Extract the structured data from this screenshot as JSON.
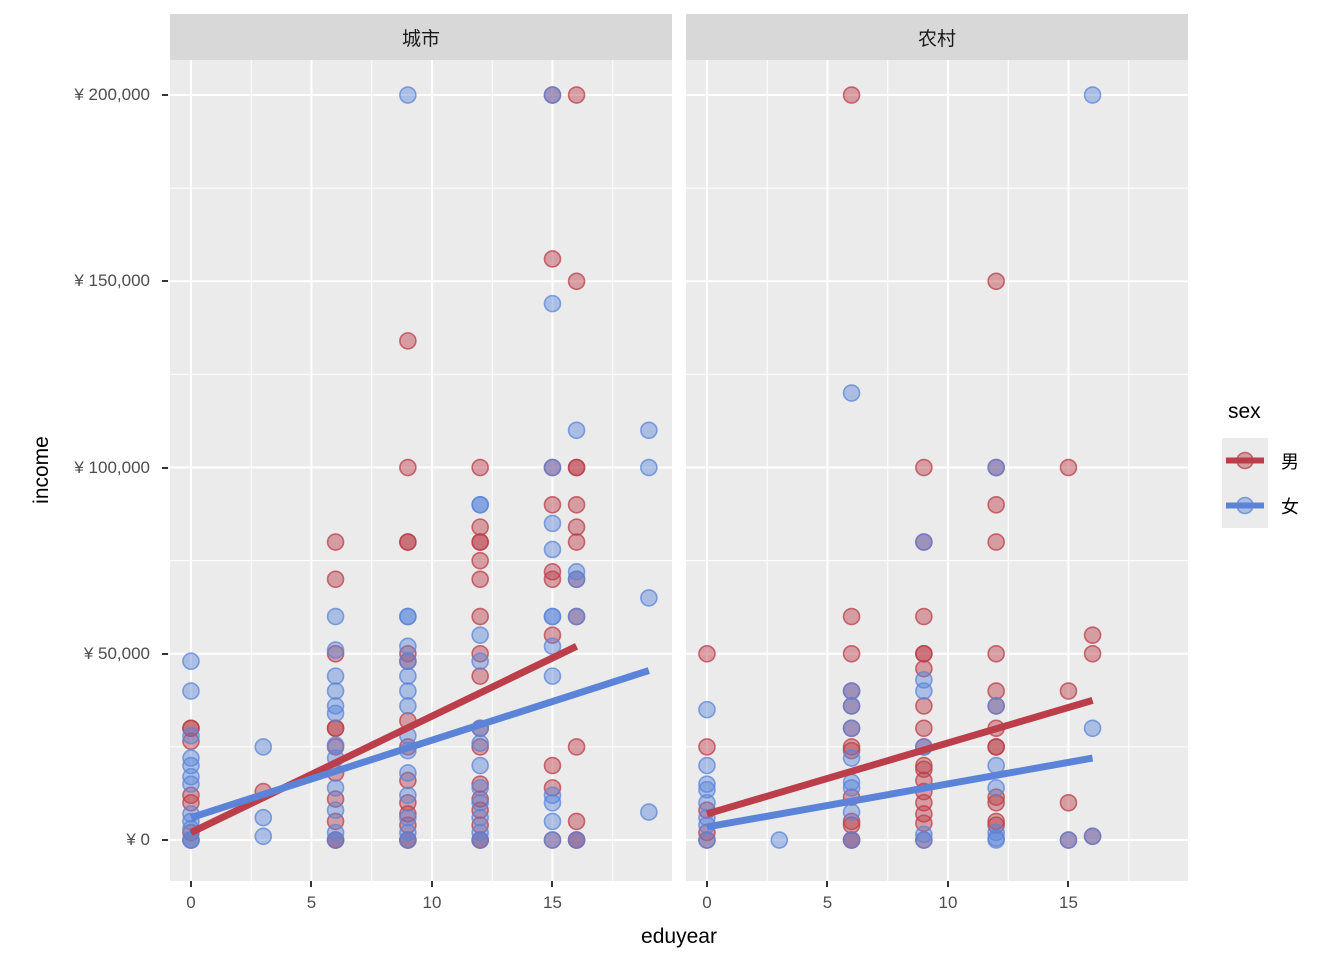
{
  "figure": {
    "xlabel": "eduyear",
    "ylabel": "income"
  },
  "legend": {
    "title": "sex",
    "entries": [
      {
        "label": "男",
        "color": "#bb3e4a"
      },
      {
        "label": "女",
        "color": "#5b84d9"
      }
    ]
  },
  "style": {
    "panel_bg": "#ebebeb",
    "strip_bg": "#d8d8d8",
    "grid_color": "#ffffff",
    "male_color": "#bb3e4a",
    "female_color": "#5b84d9"
  },
  "chart_data": {
    "type": "scatter",
    "xlabel": "eduyear",
    "ylabel": "income",
    "facets": [
      {
        "label": "城市"
      },
      {
        "label": "农村"
      }
    ],
    "x_ticks": [
      0,
      5,
      10,
      15
    ],
    "x_tick_labels": [
      "0",
      "5",
      "10",
      "15"
    ],
    "x_minor": [
      2.5,
      7.5,
      12.5,
      17.5
    ],
    "y_ticks": [
      0,
      50000,
      100000,
      150000,
      200000
    ],
    "y_tick_labels": [
      "¥ 0",
      "¥ 50,000",
      "¥ 100,000",
      "¥ 150,000",
      "¥ 200,000"
    ],
    "y_minor": [
      25000,
      75000,
      125000,
      175000
    ],
    "xlim": [
      -0.87,
      19.96
    ],
    "ylim": [
      -11000,
      209400
    ],
    "legend_title": "sex",
    "series": [
      {
        "name": "男",
        "facet": 0,
        "color": "#bb3e4a",
        "trend": [
          [
            0,
            2000
          ],
          [
            16,
            52000
          ]
        ],
        "points": [
          [
            15,
            200000
          ],
          [
            16,
            200000
          ],
          [
            15,
            156000
          ],
          [
            16,
            150000
          ],
          [
            9,
            134000
          ],
          [
            9,
            100000
          ],
          [
            12,
            100000
          ],
          [
            15,
            100000
          ],
          [
            16,
            100000
          ],
          [
            16,
            100000
          ],
          [
            15,
            90000
          ],
          [
            16,
            90000
          ],
          [
            12,
            84000
          ],
          [
            16,
            84000
          ],
          [
            6,
            80000
          ],
          [
            9,
            80000
          ],
          [
            9,
            80000
          ],
          [
            12,
            80000
          ],
          [
            12,
            80000
          ],
          [
            16,
            80000
          ],
          [
            12,
            75000
          ],
          [
            6,
            70000
          ],
          [
            15,
            72000
          ],
          [
            12,
            70000
          ],
          [
            15,
            70000
          ],
          [
            16,
            70000
          ],
          [
            12,
            60000
          ],
          [
            16,
            60000
          ],
          [
            15,
            55000
          ],
          [
            6,
            50000
          ],
          [
            9,
            50000
          ],
          [
            12,
            50000
          ],
          [
            9,
            48000
          ],
          [
            12,
            44000
          ],
          [
            0,
            30000
          ],
          [
            0,
            30000
          ],
          [
            6,
            30000
          ],
          [
            6,
            30000
          ],
          [
            9,
            32000
          ],
          [
            12,
            30000
          ],
          [
            0,
            26500
          ],
          [
            6,
            25000
          ],
          [
            9,
            25000
          ],
          [
            12,
            25000
          ],
          [
            16,
            25000
          ],
          [
            15,
            20000
          ],
          [
            6,
            18000
          ],
          [
            9,
            16000
          ],
          [
            12,
            15000
          ],
          [
            3,
            13000
          ],
          [
            0,
            12000
          ],
          [
            6,
            11000
          ],
          [
            12,
            11000
          ],
          [
            0,
            10000
          ],
          [
            9,
            10000
          ],
          [
            15,
            14000
          ],
          [
            9,
            7000
          ],
          [
            12,
            8000
          ],
          [
            16,
            5000
          ],
          [
            6,
            5000
          ],
          [
            9,
            4000
          ],
          [
            12,
            4000
          ],
          [
            0,
            2000
          ],
          [
            0,
            0
          ],
          [
            6,
            0
          ],
          [
            6,
            0
          ],
          [
            9,
            0
          ],
          [
            9,
            0
          ],
          [
            12,
            0
          ],
          [
            12,
            0
          ],
          [
            15,
            0
          ],
          [
            16,
            0
          ],
          [
            16,
            0
          ]
        ]
      },
      {
        "name": "女",
        "facet": 0,
        "color": "#5b84d9",
        "trend": [
          [
            0,
            6000
          ],
          [
            19,
            45500
          ]
        ],
        "points": [
          [
            9,
            200000
          ],
          [
            15,
            200000
          ],
          [
            15,
            144000
          ],
          [
            16,
            110000
          ],
          [
            19,
            110000
          ],
          [
            15,
            100000
          ],
          [
            19,
            100000
          ],
          [
            12,
            90000
          ],
          [
            12,
            90000
          ],
          [
            15,
            85000
          ],
          [
            15,
            78000
          ],
          [
            16,
            72000
          ],
          [
            16,
            70000
          ],
          [
            19,
            65000
          ],
          [
            6,
            60000
          ],
          [
            9,
            60000
          ],
          [
            9,
            60000
          ],
          [
            15,
            60000
          ],
          [
            15,
            60000
          ],
          [
            16,
            60000
          ],
          [
            12,
            55000
          ],
          [
            15,
            52000
          ],
          [
            6,
            51000
          ],
          [
            0,
            48000
          ],
          [
            9,
            52000
          ],
          [
            9,
            48000
          ],
          [
            12,
            48000
          ],
          [
            6,
            44000
          ],
          [
            9,
            44000
          ],
          [
            15,
            44000
          ],
          [
            0,
            40000
          ],
          [
            6,
            40000
          ],
          [
            9,
            40000
          ],
          [
            6,
            36000
          ],
          [
            9,
            36000
          ],
          [
            6,
            34000
          ],
          [
            12,
            30000
          ],
          [
            0,
            28000
          ],
          [
            9,
            28000
          ],
          [
            3,
            25000
          ],
          [
            6,
            25500
          ],
          [
            12,
            26000
          ],
          [
            9,
            24000
          ],
          [
            0,
            22000
          ],
          [
            6,
            22000
          ],
          [
            0,
            20000
          ],
          [
            12,
            20000
          ],
          [
            0,
            17000
          ],
          [
            0,
            15000
          ],
          [
            6,
            14000
          ],
          [
            12,
            14000
          ],
          [
            9,
            18000
          ],
          [
            15,
            12000
          ],
          [
            9,
            12000
          ],
          [
            15,
            10000
          ],
          [
            12,
            10000
          ],
          [
            19,
            7500
          ],
          [
            0,
            7000
          ],
          [
            6,
            8000
          ],
          [
            9,
            6000
          ],
          [
            12,
            6000
          ],
          [
            3,
            6000
          ],
          [
            0,
            5000
          ],
          [
            15,
            5000
          ],
          [
            0,
            3000
          ],
          [
            6,
            2000
          ],
          [
            9,
            2000
          ],
          [
            12,
            2000
          ],
          [
            3,
            1000
          ],
          [
            0,
            0
          ],
          [
            0,
            0
          ],
          [
            6,
            0
          ],
          [
            9,
            0
          ],
          [
            12,
            0
          ],
          [
            15,
            0
          ],
          [
            16,
            0
          ]
        ]
      },
      {
        "name": "男",
        "facet": 1,
        "color": "#bb3e4a",
        "trend": [
          [
            0,
            7000
          ],
          [
            16,
            37500
          ]
        ],
        "points": [
          [
            6,
            200000
          ],
          [
            12,
            150000
          ],
          [
            9,
            100000
          ],
          [
            12,
            100000
          ],
          [
            15,
            100000
          ],
          [
            12,
            90000
          ],
          [
            9,
            80000
          ],
          [
            12,
            80000
          ],
          [
            6,
            60000
          ],
          [
            9,
            60000
          ],
          [
            16,
            55000
          ],
          [
            0,
            50000
          ],
          [
            6,
            50000
          ],
          [
            9,
            50000
          ],
          [
            9,
            50000
          ],
          [
            12,
            50000
          ],
          [
            16,
            50000
          ],
          [
            9,
            46000
          ],
          [
            6,
            40000
          ],
          [
            12,
            40000
          ],
          [
            15,
            40000
          ],
          [
            6,
            36000
          ],
          [
            9,
            36000
          ],
          [
            12,
            36000
          ],
          [
            6,
            30000
          ],
          [
            9,
            30000
          ],
          [
            12,
            30000
          ],
          [
            0,
            25000
          ],
          [
            6,
            25000
          ],
          [
            6,
            24000
          ],
          [
            9,
            25000
          ],
          [
            12,
            25000
          ],
          [
            12,
            25000
          ],
          [
            9,
            20000
          ],
          [
            9,
            19000
          ],
          [
            9,
            16000
          ],
          [
            9,
            13000
          ],
          [
            6,
            11500
          ],
          [
            12,
            11500
          ],
          [
            9,
            10000
          ],
          [
            12,
            10000
          ],
          [
            15,
            10000
          ],
          [
            0,
            8000
          ],
          [
            9,
            7000
          ],
          [
            6,
            5000
          ],
          [
            12,
            5000
          ],
          [
            9,
            4500
          ],
          [
            6,
            4000
          ],
          [
            12,
            4000
          ],
          [
            0,
            2000
          ],
          [
            0,
            0
          ],
          [
            6,
            0
          ],
          [
            6,
            0
          ],
          [
            9,
            0
          ],
          [
            15,
            0
          ],
          [
            16,
            1000
          ]
        ]
      },
      {
        "name": "女",
        "facet": 1,
        "color": "#5b84d9",
        "trend": [
          [
            0,
            3500
          ],
          [
            16,
            22000
          ]
        ],
        "points": [
          [
            16,
            200000
          ],
          [
            6,
            120000
          ],
          [
            12,
            100000
          ],
          [
            9,
            80000
          ],
          [
            9,
            43000
          ],
          [
            6,
            40000
          ],
          [
            9,
            40000
          ],
          [
            6,
            36000
          ],
          [
            12,
            36000
          ],
          [
            0,
            35000
          ],
          [
            6,
            30000
          ],
          [
            16,
            30000
          ],
          [
            9,
            25000
          ],
          [
            6,
            22000
          ],
          [
            0,
            20000
          ],
          [
            12,
            20000
          ],
          [
            6,
            15500
          ],
          [
            0,
            15000
          ],
          [
            6,
            14000
          ],
          [
            12,
            14000
          ],
          [
            0,
            13500
          ],
          [
            0,
            10000
          ],
          [
            6,
            7500
          ],
          [
            0,
            6000
          ],
          [
            0,
            4000
          ],
          [
            12,
            2000
          ],
          [
            9,
            1500
          ],
          [
            12,
            500
          ],
          [
            0,
            0
          ],
          [
            3,
            0
          ],
          [
            6,
            0
          ],
          [
            9,
            0
          ],
          [
            12,
            0
          ],
          [
            15,
            0
          ],
          [
            16,
            1000
          ]
        ]
      }
    ]
  },
  "layout_note": "faceted scatter plot with linear trend lines"
}
